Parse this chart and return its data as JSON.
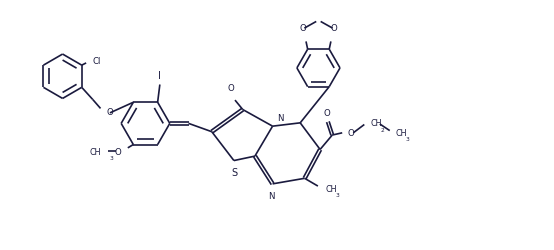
{
  "bg_color": "#ffffff",
  "line_color": "#1a1a3e",
  "lw": 1.2,
  "figsize": [
    5.54,
    2.51
  ],
  "dpi": 100,
  "xlim": [
    0,
    10
  ],
  "ylim": [
    0,
    4.5
  ]
}
